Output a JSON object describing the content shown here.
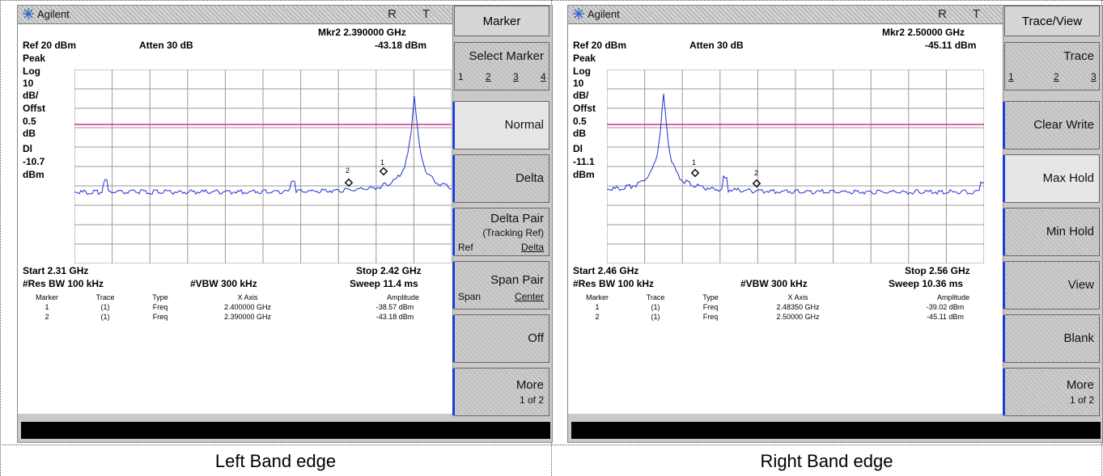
{
  "left": {
    "brand": "Agilent",
    "indicators": "R T",
    "marker_readout": "Mkr2  2.390000 GHz",
    "ref_level": "Ref 20 dBm",
    "attenuation": "Atten 30 dB",
    "marker_amplitude": "-43.18 dBm",
    "scale_labels": [
      "Peak",
      "Log",
      "10",
      "dB/",
      "Offst",
      "0.5",
      "dB",
      "Dl",
      "-10.7",
      "dBm"
    ],
    "start": "Start 2.31 GHz",
    "stop": "Stop 2.42 GHz",
    "res_bw": "#Res BW 100 kHz",
    "vbw": "#VBW 300 kHz",
    "sweep": "Sweep 11.4 ms",
    "table_headers": [
      "Marker",
      "Trace",
      "Type",
      "X Axis",
      "Amplitude"
    ],
    "table_rows": [
      [
        "1",
        "(1)",
        "Freq",
        "2.400000 GHz",
        "-38.57 dBm"
      ],
      [
        "2",
        "(1)",
        "Freq",
        "2.390000 GHz",
        "-43.18 dBm"
      ]
    ],
    "marker_labels": [
      "1",
      "2"
    ],
    "menu_title": "Marker",
    "softkeys": [
      {
        "label": "Select Marker",
        "sub": [
          "1",
          "2",
          "3",
          "4"
        ]
      },
      {
        "label": "Normal"
      },
      {
        "label": "Delta"
      },
      {
        "label": "Delta Pair",
        "line2": "(Tracking Ref)",
        "left": "Ref",
        "right": "Delta"
      },
      {
        "label": "Span Pair",
        "left": "Span",
        "right": "Center"
      },
      {
        "label": "Off"
      },
      {
        "label": "More",
        "line2": "1 of 2"
      }
    ],
    "caption": "Left Band edge"
  },
  "right": {
    "brand": "Agilent",
    "indicators": "R T",
    "marker_readout": "Mkr2  2.50000 GHz",
    "ref_level": "Ref 20 dBm",
    "attenuation": "Atten 30 dB",
    "marker_amplitude": "-45.11 dBm",
    "scale_labels": [
      "Peak",
      "Log",
      "10",
      "dB/",
      "Offst",
      "0.5",
      "dB",
      "Dl",
      "-11.1",
      "dBm"
    ],
    "start": "Start 2.46 GHz",
    "stop": "Stop 2.56 GHz",
    "res_bw": "#Res BW 100 kHz",
    "vbw": "#VBW 300 kHz",
    "sweep": "Sweep 10.36 ms",
    "table_headers": [
      "Marker",
      "Trace",
      "Type",
      "X Axis",
      "Amplitude"
    ],
    "table_rows": [
      [
        "1",
        "(1)",
        "Freq",
        "2.48350 GHz",
        "-39.02 dBm"
      ],
      [
        "2",
        "(1)",
        "Freq",
        "2.50000 GHz",
        "-45.11 dBm"
      ]
    ],
    "marker_labels": [
      "1",
      "2"
    ],
    "menu_title": "Trace/View",
    "softkeys": [
      {
        "label": "Trace",
        "sub": [
          "1",
          "2",
          "3"
        ]
      },
      {
        "label": "Clear Write"
      },
      {
        "label": "Max Hold"
      },
      {
        "label": "Min Hold"
      },
      {
        "label": "View"
      },
      {
        "label": "Blank"
      },
      {
        "label": "More",
        "line2": "1 of 2"
      }
    ],
    "caption": "Right Band edge"
  },
  "colors": {
    "trace": "#1f2fd6",
    "display_line": "#d62f8f",
    "grid": "#9a9a9a",
    "softkey_accent": "#1a3fd6"
  }
}
